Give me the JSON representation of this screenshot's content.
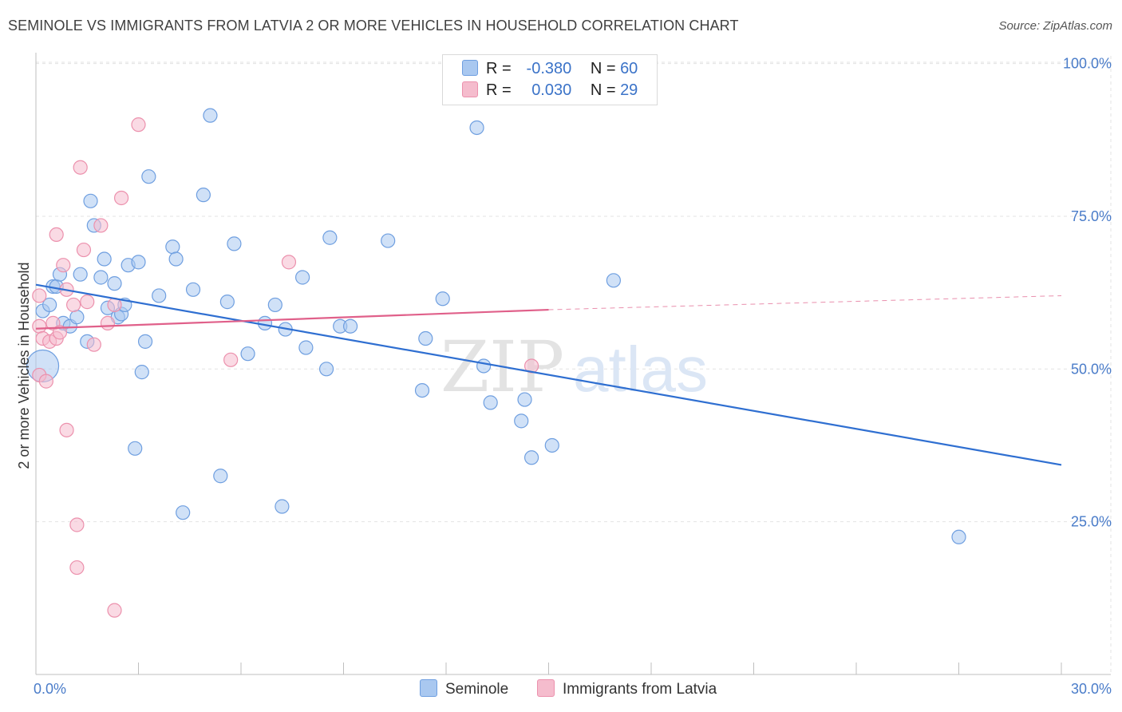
{
  "title": "SEMINOLE VS IMMIGRANTS FROM LATVIA 2 OR MORE VEHICLES IN HOUSEHOLD CORRELATION CHART",
  "source": "Source: ZipAtlas.com",
  "legend": {
    "r_label": "R =",
    "n_label": "N =",
    "rows": [
      {
        "r": "-0.380",
        "n": "60"
      },
      {
        "r": "0.030",
        "n": "29"
      }
    ]
  },
  "watermark": {
    "zip": "ZIP",
    "atlas": "atlas"
  },
  "colors": {
    "seminole_fill": "#a9c8f0",
    "seminole_stroke": "#6f9fe0",
    "seminole_line": "#2f6fd1",
    "latvia_fill": "#f5bccd",
    "latvia_stroke": "#ec91ad",
    "latvia_line": "#e0608a",
    "tick_text": "#4a7cc9"
  },
  "chart_data": {
    "type": "scatter",
    "xlabel": "",
    "ylabel": "2 or more Vehicles in Household",
    "xlim": [
      0,
      30
    ],
    "ylim": [
      0,
      105
    ],
    "x_tick_labels": [
      "0.0%",
      "30.0%"
    ],
    "y_ticks": [
      25,
      50,
      75,
      100
    ],
    "y_tick_labels": [
      "25.0%",
      "50.0%",
      "75.0%",
      "100.0%"
    ],
    "grid": true,
    "legend_position": "bottom",
    "series": [
      {
        "name": "Seminole",
        "points": [
          [
            0.2,
            50.5
          ],
          [
            0.2,
            59.5
          ],
          [
            0.4,
            60.5
          ],
          [
            0.5,
            63.5
          ],
          [
            0.6,
            63.5
          ],
          [
            0.7,
            65.5
          ],
          [
            0.8,
            57.5
          ],
          [
            1.0,
            57.0
          ],
          [
            1.2,
            58.5
          ],
          [
            1.3,
            65.5
          ],
          [
            1.5,
            54.5
          ],
          [
            1.6,
            77.5
          ],
          [
            1.7,
            73.5
          ],
          [
            1.9,
            65.0
          ],
          [
            2.0,
            68.0
          ],
          [
            2.1,
            60.0
          ],
          [
            2.3,
            64.0
          ],
          [
            2.4,
            58.5
          ],
          [
            2.5,
            59.0
          ],
          [
            2.6,
            60.5
          ],
          [
            2.7,
            67.0
          ],
          [
            2.9,
            37.0
          ],
          [
            3.0,
            67.5
          ],
          [
            3.1,
            49.5
          ],
          [
            3.2,
            54.5
          ],
          [
            3.3,
            81.5
          ],
          [
            3.6,
            62.0
          ],
          [
            4.0,
            70.0
          ],
          [
            4.1,
            68.0
          ],
          [
            4.3,
            26.5
          ],
          [
            4.6,
            63.0
          ],
          [
            4.9,
            78.5
          ],
          [
            5.1,
            91.5
          ],
          [
            5.4,
            32.5
          ],
          [
            5.6,
            61.0
          ],
          [
            5.8,
            70.5
          ],
          [
            6.2,
            52.5
          ],
          [
            6.7,
            57.5
          ],
          [
            7.0,
            60.5
          ],
          [
            7.2,
            27.5
          ],
          [
            7.3,
            56.5
          ],
          [
            7.8,
            65.0
          ],
          [
            7.9,
            53.5
          ],
          [
            8.5,
            50.0
          ],
          [
            8.6,
            71.5
          ],
          [
            8.9,
            57.0
          ],
          [
            9.2,
            57.0
          ],
          [
            10.3,
            71.0
          ],
          [
            11.3,
            46.5
          ],
          [
            11.4,
            55.0
          ],
          [
            11.9,
            61.5
          ],
          [
            12.9,
            89.5
          ],
          [
            13.1,
            50.5
          ],
          [
            13.3,
            44.5
          ],
          [
            14.2,
            41.5
          ],
          [
            14.3,
            45.0
          ],
          [
            14.5,
            35.5
          ],
          [
            15.1,
            37.5
          ],
          [
            16.9,
            64.5
          ],
          [
            27.0,
            22.5
          ]
        ],
        "trend": {
          "x": [
            0,
            30
          ],
          "y": [
            63.8,
            34.3
          ]
        }
      },
      {
        "name": "Immigrants from Latvia",
        "points": [
          [
            0.1,
            49.0
          ],
          [
            0.1,
            57.0
          ],
          [
            0.2,
            55.0
          ],
          [
            0.3,
            48.0
          ],
          [
            0.4,
            54.5
          ],
          [
            0.5,
            57.5
          ],
          [
            0.6,
            55.0
          ],
          [
            0.6,
            72.0
          ],
          [
            0.7,
            56.0
          ],
          [
            0.8,
            67.0
          ],
          [
            0.9,
            63.0
          ],
          [
            0.9,
            40.0
          ],
          [
            1.1,
            60.5
          ],
          [
            1.2,
            24.5
          ],
          [
            1.2,
            17.5
          ],
          [
            1.3,
            83.0
          ],
          [
            1.4,
            69.5
          ],
          [
            1.5,
            61.0
          ],
          [
            1.7,
            54.0
          ],
          [
            1.9,
            73.5
          ],
          [
            2.1,
            57.5
          ],
          [
            2.3,
            10.5
          ],
          [
            2.3,
            60.5
          ],
          [
            2.5,
            78.0
          ],
          [
            3.0,
            90.0
          ],
          [
            5.7,
            51.5
          ],
          [
            7.4,
            67.5
          ],
          [
            14.5,
            50.5
          ],
          [
            0.1,
            62.0
          ]
        ],
        "trend": {
          "x": [
            0,
            15
          ],
          "y": [
            56.6,
            59.7
          ]
        },
        "trend_dashed": {
          "x": [
            15,
            30
          ],
          "y": [
            59.7,
            62.0
          ]
        }
      }
    ]
  }
}
